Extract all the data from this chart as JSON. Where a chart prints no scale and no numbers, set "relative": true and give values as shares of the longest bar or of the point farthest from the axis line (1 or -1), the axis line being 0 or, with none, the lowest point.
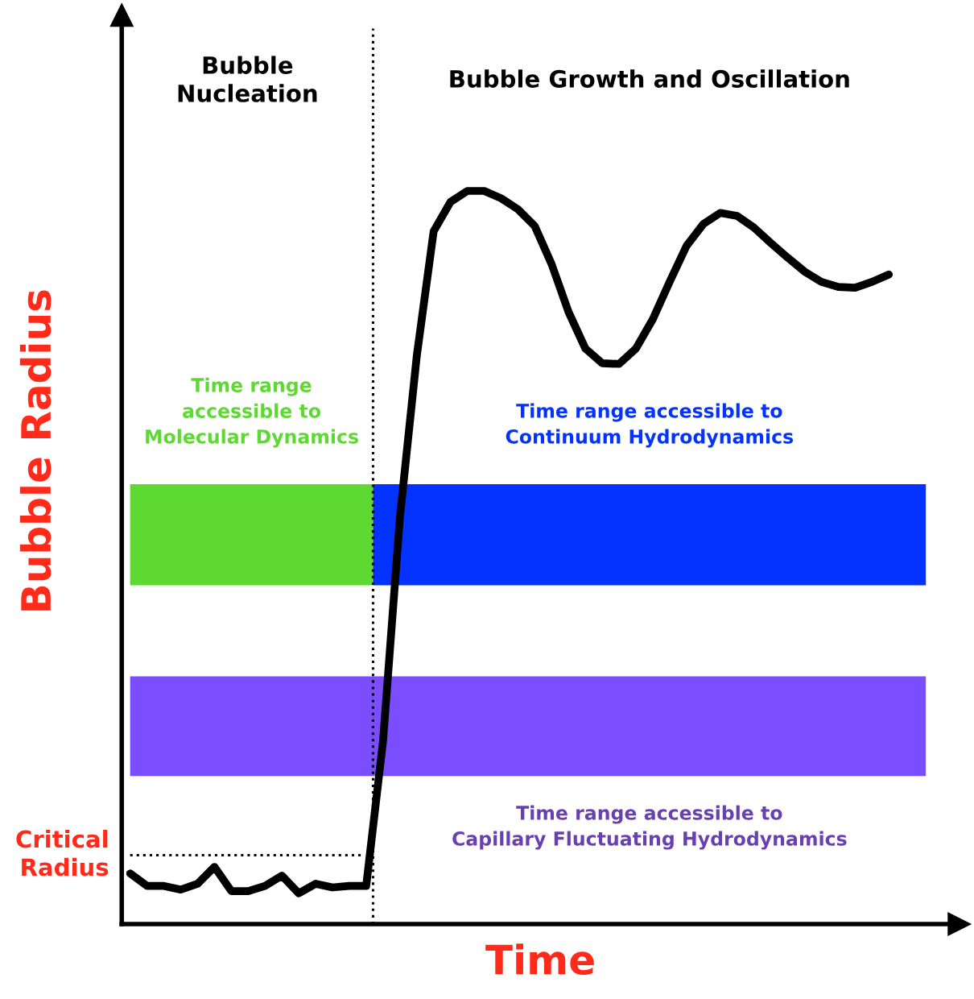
{
  "chart_data": {
    "type": "line",
    "relative": true,
    "xlabel": "Time",
    "ylabel": "Bubble Radius",
    "line_style": "solid",
    "annotations": [
      "Bubble\nNucleation",
      "Bubble Growth and Oscillation"
    ],
    "categories": [
      null,
      null,
      null,
      null,
      null,
      null,
      null,
      null,
      null,
      null,
      null,
      null,
      null,
      null,
      null,
      null,
      null,
      null,
      null,
      null,
      null,
      null,
      null,
      null,
      null,
      null,
      null,
      null,
      null,
      null,
      null,
      null,
      null,
      null,
      null,
      null,
      null,
      null,
      null,
      null,
      null,
      null,
      null,
      null,
      null,
      null
    ],
    "series": [
      {
        "color": "#000000",
        "values": [
          0.069,
          0.052,
          0.052,
          0.047,
          0.055,
          0.078,
          0.045,
          0.045,
          0.052,
          0.066,
          0.042,
          0.055,
          0.05,
          0.052,
          0.052,
          0.25,
          0.555,
          0.775,
          0.945,
          0.985,
          1,
          1,
          0.99,
          0.975,
          0.952,
          0.9,
          0.835,
          0.785,
          0.765,
          0.764,
          0.785,
          0.825,
          0.876,
          0.925,
          0.955,
          0.97,
          0.966,
          0.95,
          0.929,
          0.909,
          0.89,
          0.876,
          0.869,
          0.868,
          0.876,
          0.886
        ]
      }
    ],
    "ref_lines": [
      {
        "axis": "y",
        "value": 0.094,
        "label": "Critical\nRadius",
        "line_style": "dotted",
        "color": "#000000"
      }
    ],
    "bands": [
      {
        "axis": "y",
        "from": 0.462,
        "to": 0.6,
        "color": "#5ed932",
        "label": "Time range\naccessible to\nMolecular Dynamics"
      },
      {
        "axis": "y",
        "from": 0.462,
        "to": 0.6,
        "color": "#0433ff",
        "label": "Time range accessible to\nContinuum Hydrodynamics"
      },
      {
        "axis": "y",
        "from": 0.202,
        "to": 0.338,
        "color": "#7a4dff",
        "label": "Time range accessible to\nCapillary Fluctuating Hydrodynamics"
      }
    ]
  }
}
